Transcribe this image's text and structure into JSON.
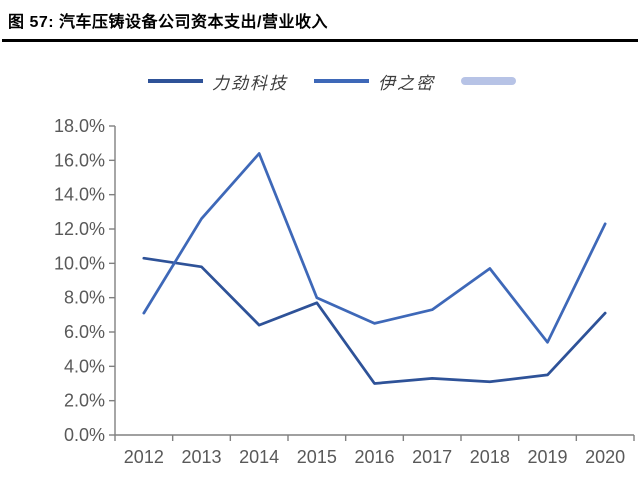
{
  "header": {
    "title": "图 57:  汽车压铸设备公司资本支出/营业收入"
  },
  "legend": {
    "items": [
      {
        "label": "力劲科技",
        "color": "#2E5298",
        "swatch": "line"
      },
      {
        "label": "伊之密",
        "color": "#3E68B8",
        "swatch": "line"
      },
      {
        "label": "",
        "color": "#B7C3E6",
        "swatch": "thick-line"
      }
    ]
  },
  "chart_data": {
    "type": "line",
    "title": "汽车压铸设备公司资本支出/营业收入",
    "categories": [
      "2012",
      "2013",
      "2014",
      "2015",
      "2016",
      "2017",
      "2018",
      "2019",
      "2020"
    ],
    "series": [
      {
        "name": "力劲科技",
        "color": "#2E5298",
        "values": [
          10.3,
          9.8,
          6.4,
          7.7,
          3.0,
          3.3,
          3.1,
          3.5,
          7.1
        ]
      },
      {
        "name": "伊之密",
        "color": "#3E68B8",
        "values": [
          7.1,
          12.6,
          16.4,
          8.0,
          6.5,
          7.3,
          9.7,
          5.4,
          12.3
        ]
      }
    ],
    "xlabel": "",
    "ylabel": "",
    "ylim": [
      0,
      18
    ],
    "ytick_step": 2,
    "ytick_labels": [
      "0.0%",
      "2.0%",
      "4.0%",
      "6.0%",
      "8.0%",
      "10.0%",
      "12.0%",
      "14.0%",
      "16.0%",
      "18.0%"
    ],
    "grid": false,
    "legend_position": "top",
    "axis_color": "#808080",
    "tick_label_color": "#595959"
  }
}
